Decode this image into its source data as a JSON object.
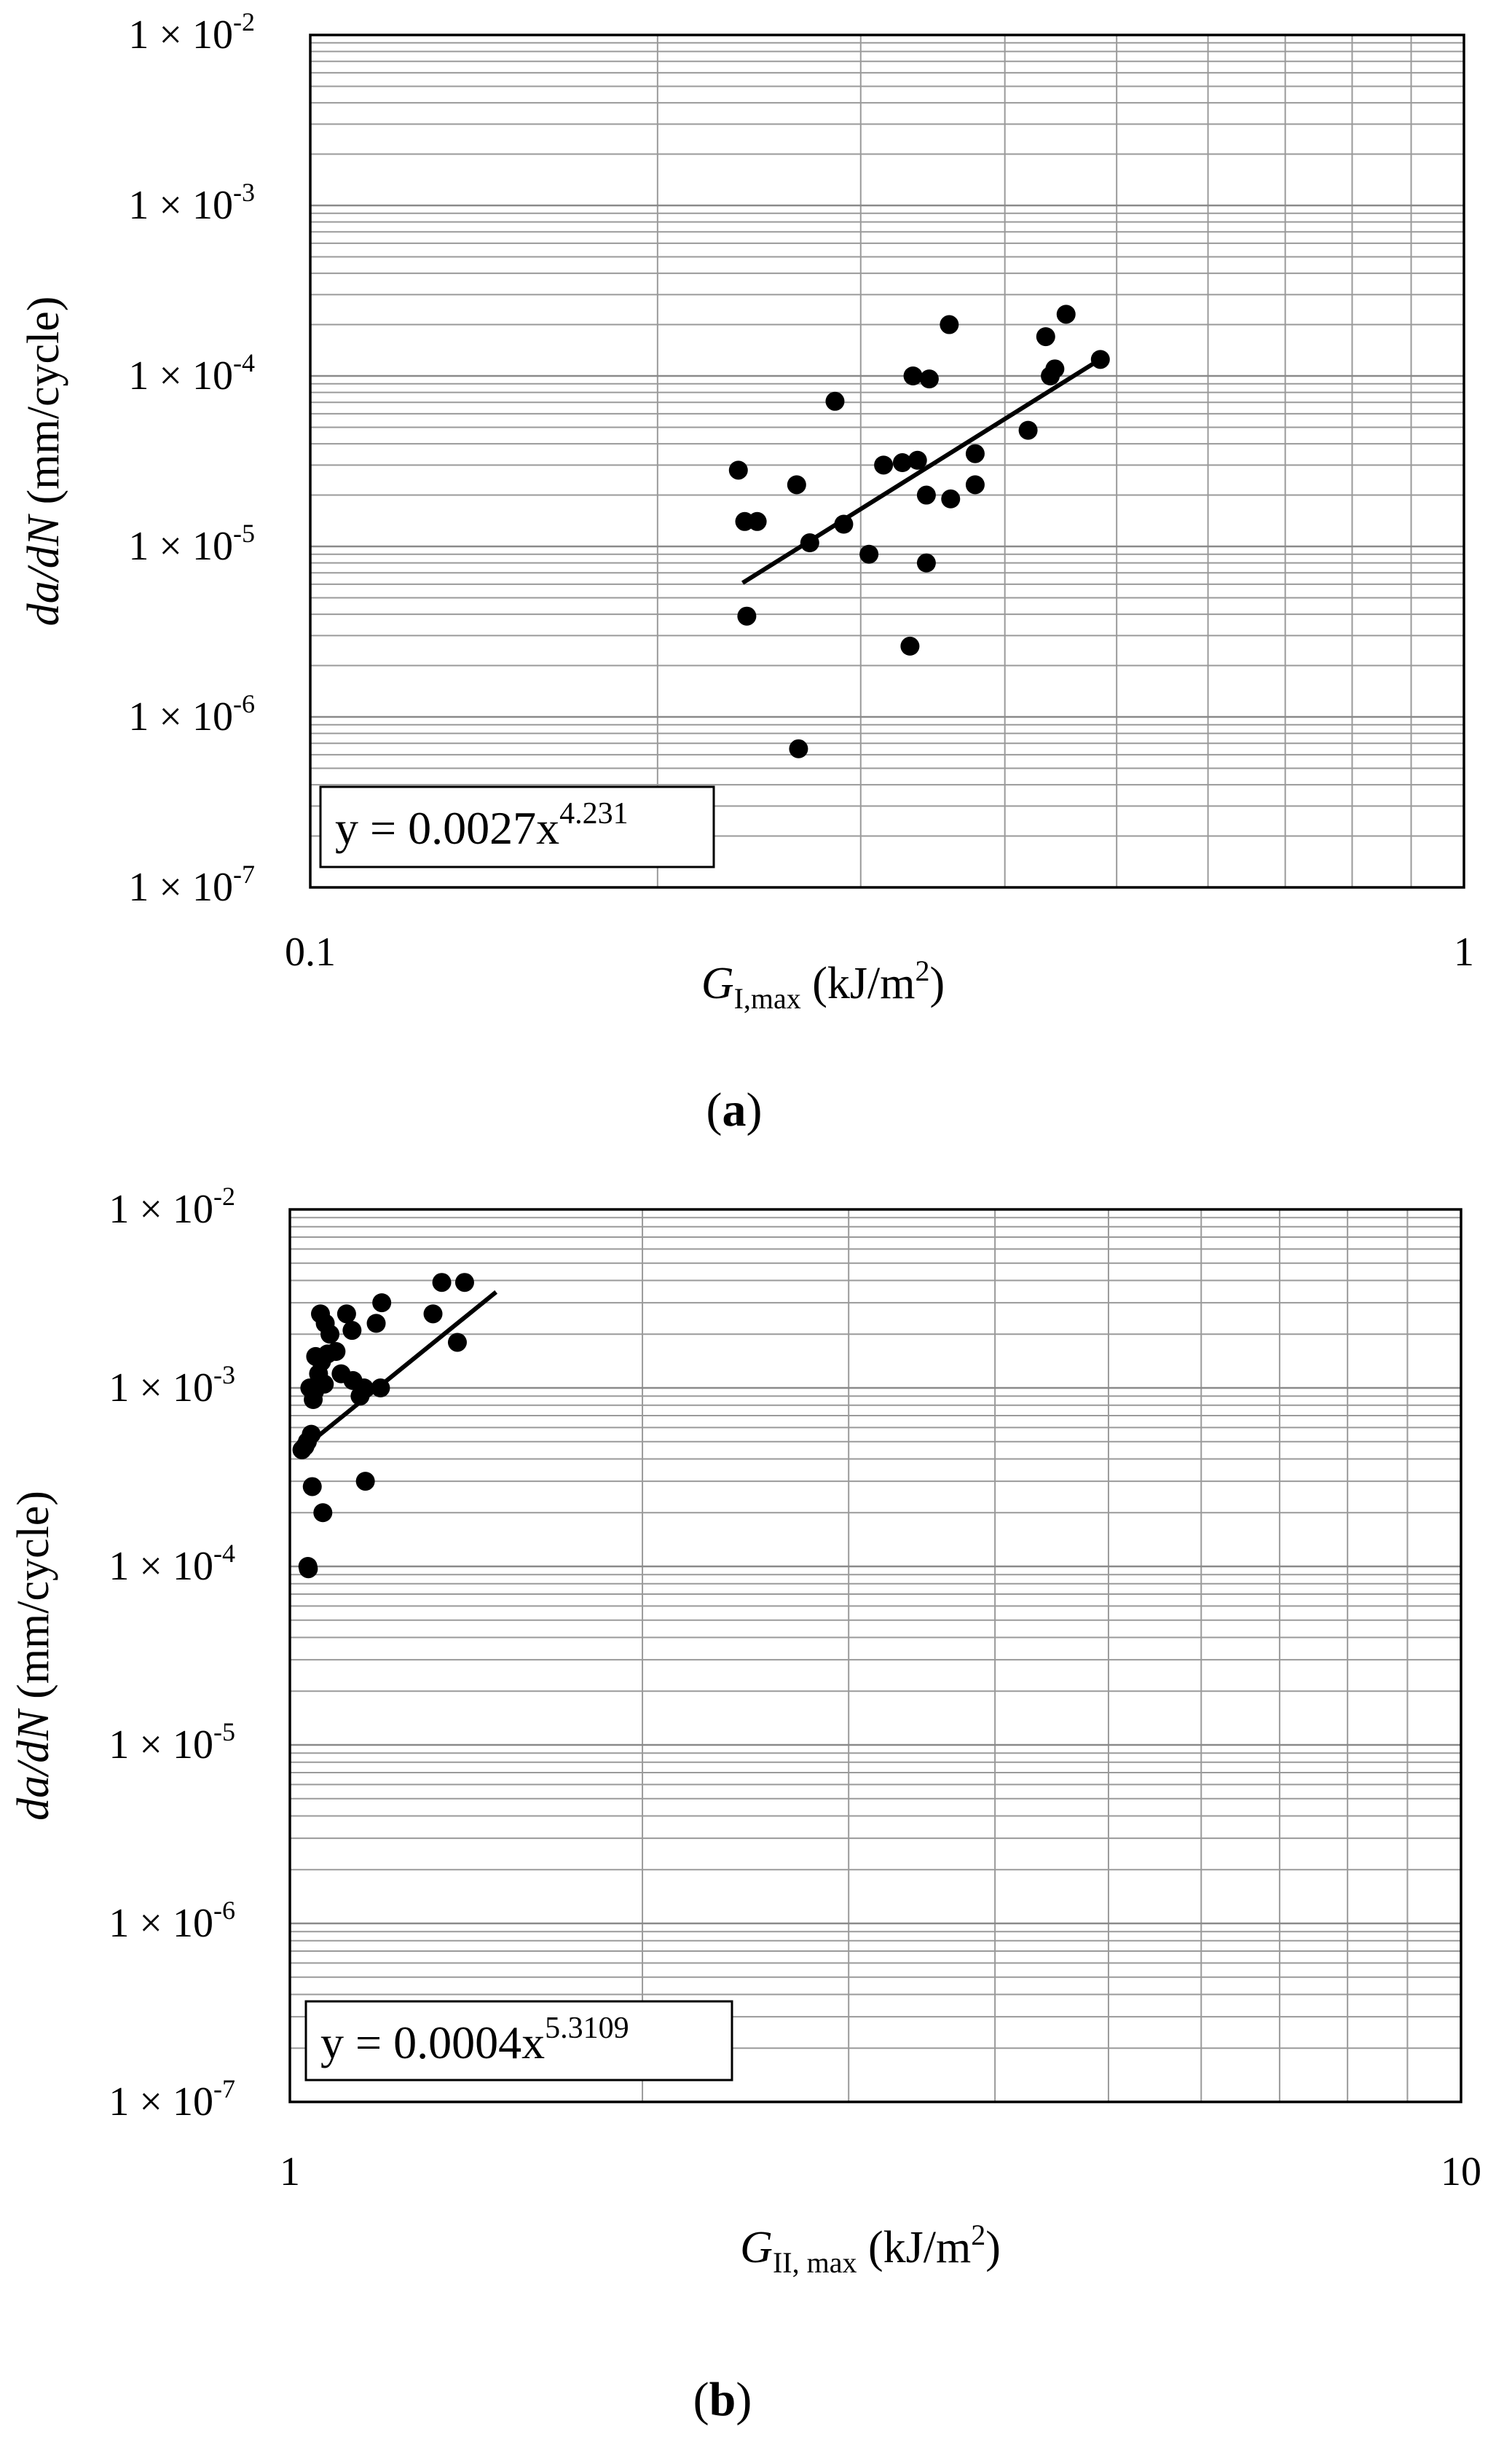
{
  "chart_data": [
    {
      "type": "scatter",
      "panel_label": "a",
      "xscale": "log",
      "yscale": "log",
      "xlim": [
        0.1,
        1
      ],
      "ylim": [
        1e-07,
        0.01
      ],
      "grid": true,
      "x_tick_labels": [
        {
          "value": 0.1,
          "label": "0.1"
        },
        {
          "value": 1,
          "label": "1"
        }
      ],
      "y_tick_labels": [
        {
          "value": 0.01,
          "base": "1 × 10",
          "exp": "-2"
        },
        {
          "value": 0.001,
          "base": "1 × 10",
          "exp": "-3"
        },
        {
          "value": 0.0001,
          "base": "1 × 10",
          "exp": "-4"
        },
        {
          "value": 1e-05,
          "base": "1 × 10",
          "exp": "-5"
        },
        {
          "value": 1e-06,
          "base": "1 × 10",
          "exp": "-6"
        },
        {
          "value": 1e-07,
          "base": "1 × 10",
          "exp": "-7"
        }
      ],
      "ylabel": {
        "italic": "da/dN",
        "rest": " (mm/cycle)"
      },
      "xlabel": {
        "main": "G",
        "sub": "I,max",
        "rest": " (kJ/m",
        "sup": "2",
        "end": ")"
      },
      "equation": {
        "text": "y = 0.0027x",
        "exp": "4.231"
      },
      "fit": {
        "coef": 0.0027,
        "exponent": 4.231,
        "x_range": [
          0.237,
          0.482
        ]
      },
      "points": [
        [
          0.235,
          2.8e-05
        ],
        [
          0.238,
          1.4e-05
        ],
        [
          0.244,
          1.4e-05
        ],
        [
          0.239,
          3.9e-06
        ],
        [
          0.264,
          2.3e-05
        ],
        [
          0.265,
          6.5e-07
        ],
        [
          0.271,
          1.05e-05
        ],
        [
          0.285,
          7.1e-05
        ],
        [
          0.29,
          1.35e-05
        ],
        [
          0.305,
          9e-06
        ],
        [
          0.314,
          3e-05
        ],
        [
          0.326,
          3.1e-05
        ],
        [
          0.331,
          2.6e-06
        ],
        [
          0.333,
          0.0001
        ],
        [
          0.336,
          3.2e-05
        ],
        [
          0.342,
          2e-05
        ],
        [
          0.342,
          8e-06
        ],
        [
          0.344,
          9.6e-05
        ],
        [
          0.359,
          1.9e-05
        ],
        [
          0.358,
          0.0002
        ],
        [
          0.377,
          3.5e-05
        ],
        [
          0.377,
          2.3e-05
        ],
        [
          0.419,
          4.8e-05
        ],
        [
          0.434,
          0.00017
        ],
        [
          0.438,
          0.0001
        ],
        [
          0.442,
          0.00011
        ],
        [
          0.452,
          0.00023
        ],
        [
          0.484,
          0.000125
        ]
      ]
    },
    {
      "type": "scatter",
      "panel_label": "b",
      "xscale": "log",
      "yscale": "log",
      "xlim": [
        1,
        10
      ],
      "ylim": [
        1e-07,
        0.01
      ],
      "grid": true,
      "x_tick_labels": [
        {
          "value": 1,
          "label": "1"
        },
        {
          "value": 10,
          "label": "10"
        }
      ],
      "y_tick_labels": [
        {
          "value": 0.01,
          "base": "1 × 10",
          "exp": "-2"
        },
        {
          "value": 0.001,
          "base": "1 × 10",
          "exp": "-3"
        },
        {
          "value": 0.0001,
          "base": "1 × 10",
          "exp": "-4"
        },
        {
          "value": 1e-05,
          "base": "1 × 10",
          "exp": "-5"
        },
        {
          "value": 1e-06,
          "base": "1 × 10",
          "exp": "-6"
        },
        {
          "value": 1e-07,
          "base": "1 × 10",
          "exp": "-7"
        }
      ],
      "ylabel": {
        "italic": "da/dN",
        "rest": " (mm/cycle)"
      },
      "xlabel": {
        "main": "G",
        "sub": "II, max",
        "rest": " (kJ/m",
        "sup": "2",
        "end": ")"
      },
      "equation": {
        "text": "y = 0.0004x",
        "exp": "5.3109"
      },
      "fit": {
        "coef": 0.0004,
        "exponent": 5.3109,
        "x_range": [
          1.04,
          1.5
        ]
      },
      "points": [
        [
          1.024,
          0.00045
        ],
        [
          1.03,
          0.00047
        ],
        [
          1.035,
          0.0005
        ],
        [
          1.036,
          0.0001
        ],
        [
          1.037,
          9.7e-05
        ],
        [
          1.04,
          0.001
        ],
        [
          1.043,
          0.00055
        ],
        [
          1.045,
          0.00028
        ],
        [
          1.047,
          0.00086
        ],
        [
          1.05,
          0.00096
        ],
        [
          1.052,
          0.0015
        ],
        [
          1.058,
          0.0012
        ],
        [
          1.062,
          0.0026
        ],
        [
          1.064,
          0.0014
        ],
        [
          1.067,
          0.0002
        ],
        [
          1.07,
          0.00105
        ],
        [
          1.072,
          0.0023
        ],
        [
          1.077,
          0.00155
        ],
        [
          1.082,
          0.002
        ],
        [
          1.095,
          0.0016
        ],
        [
          1.106,
          0.0012
        ],
        [
          1.118,
          0.0026
        ],
        [
          1.13,
          0.0021
        ],
        [
          1.132,
          0.0011
        ],
        [
          1.148,
          0.0009
        ],
        [
          1.157,
          0.001
        ],
        [
          1.16,
          0.0003
        ],
        [
          1.185,
          0.0023
        ],
        [
          1.195,
          0.001
        ],
        [
          1.198,
          0.003
        ],
        [
          1.325,
          0.0026
        ],
        [
          1.348,
          0.0039
        ],
        [
          1.39,
          0.0018
        ],
        [
          1.41,
          0.0039
        ]
      ]
    }
  ]
}
